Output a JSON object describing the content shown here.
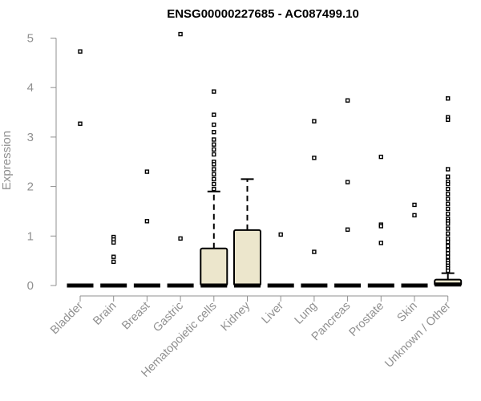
{
  "chart_data": {
    "type": "boxplot",
    "title": "ENSG00000227685 - AC087499.10",
    "ylabel": "Expression",
    "xlabel": "",
    "ylim": [
      0,
      5.2
    ],
    "yticks": [
      0,
      1,
      2,
      3,
      4,
      5
    ],
    "colors": {
      "box_fill": "#ece6cc",
      "outline": "#000000",
      "axis": "#909090"
    },
    "categories": [
      "Bladder",
      "Brain",
      "Breast",
      "Gastric",
      "Hematopoietic cells",
      "Kidney",
      "Liver",
      "Lung",
      "Pancreas",
      "Prostate",
      "Skin",
      "Unknown / Other"
    ],
    "boxes": [
      {
        "name": "Bladder",
        "q1": 0,
        "median": 0,
        "q3": 0,
        "whisker_low": 0,
        "whisker_high": 0,
        "outliers": [
          4.73,
          3.27
        ]
      },
      {
        "name": "Brain",
        "q1": 0,
        "median": 0,
        "q3": 0,
        "whisker_low": 0,
        "whisker_high": 0,
        "outliers": [
          0.98,
          0.93,
          0.87,
          0.58,
          0.48
        ]
      },
      {
        "name": "Breast",
        "q1": 0,
        "median": 0,
        "q3": 0,
        "whisker_low": 0,
        "whisker_high": 0,
        "outliers": [
          2.3,
          1.3
        ]
      },
      {
        "name": "Gastric",
        "q1": 0,
        "median": 0,
        "q3": 0,
        "whisker_low": 0,
        "whisker_high": 0,
        "outliers": [
          5.08,
          0.95
        ]
      },
      {
        "name": "Hematopoietic cells",
        "q1": 0,
        "median": 0,
        "q3": 0.75,
        "whisker_low": 0,
        "whisker_high": 1.9,
        "outliers": [
          3.92,
          3.45,
          3.25,
          3.1,
          2.95,
          2.85,
          2.75,
          2.65,
          2.5,
          2.45,
          2.35,
          2.25,
          2.15,
          2.05,
          1.95
        ]
      },
      {
        "name": "Kidney",
        "q1": 0,
        "median": 0,
        "q3": 1.12,
        "whisker_low": 0,
        "whisker_high": 2.15,
        "outliers": []
      },
      {
        "name": "Liver",
        "q1": 0,
        "median": 0,
        "q3": 0,
        "whisker_low": 0,
        "whisker_high": 0,
        "outliers": [
          1.03
        ]
      },
      {
        "name": "Lung",
        "q1": 0,
        "median": 0,
        "q3": 0,
        "whisker_low": 0,
        "whisker_high": 0,
        "outliers": [
          3.32,
          2.58,
          0.68
        ]
      },
      {
        "name": "Pancreas",
        "q1": 0,
        "median": 0,
        "q3": 0,
        "whisker_low": 0,
        "whisker_high": 0,
        "outliers": [
          3.74,
          2.09,
          1.13
        ]
      },
      {
        "name": "Prostate",
        "q1": 0,
        "median": 0,
        "q3": 0,
        "whisker_low": 0,
        "whisker_high": 0,
        "outliers": [
          2.6,
          1.23,
          1.2,
          0.86
        ]
      },
      {
        "name": "Skin",
        "q1": 0,
        "median": 0,
        "q3": 0,
        "whisker_low": 0,
        "whisker_high": 0,
        "outliers": [
          1.63,
          1.42
        ]
      },
      {
        "name": "Unknown / Other",
        "q1": 0,
        "median": 0.02,
        "q3": 0.12,
        "whisker_low": 0,
        "whisker_high": 0.25,
        "outliers": [
          3.78,
          3.4,
          3.35,
          2.35,
          2.2,
          2.1,
          2.05,
          1.95,
          1.85,
          1.75,
          1.65,
          1.55,
          1.45,
          1.35,
          1.3,
          1.25,
          1.15,
          1.05,
          0.95,
          0.88,
          0.8,
          0.72,
          0.65,
          0.58,
          0.5,
          0.45,
          0.4,
          0.35,
          0.3
        ]
      }
    ]
  }
}
